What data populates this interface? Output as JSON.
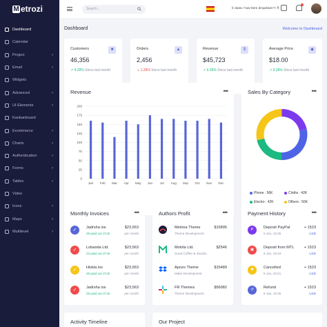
{
  "brand": {
    "logo_text": "etrozi",
    "logo_letter": "M"
  },
  "sidebar": {
    "items": [
      {
        "label": "Dashboard",
        "icon": "home-icon",
        "chevron": false,
        "active": true
      },
      {
        "label": "Calendar",
        "icon": "calendar-icon",
        "chevron": false
      },
      {
        "label": "Project",
        "icon": "folder-icon",
        "chevron": true
      },
      {
        "label": "Email",
        "icon": "mail-icon",
        "chevron": true
      },
      {
        "label": "Widgets",
        "icon": "widget-icon",
        "chevron": false
      },
      {
        "label": "Advanced",
        "icon": "layers-icon",
        "chevron": true
      },
      {
        "label": "UI Elements",
        "icon": "box-icon",
        "chevron": true
      },
      {
        "label": "Kanbanboard",
        "icon": "kanban-icon",
        "chevron": false
      },
      {
        "label": "Ecommerce",
        "icon": "cart-icon",
        "chevron": true
      },
      {
        "label": "Charts",
        "icon": "chart-icon",
        "chevron": true
      },
      {
        "label": "Authentication",
        "icon": "lock-icon",
        "chevron": true
      },
      {
        "label": "Forms",
        "icon": "form-icon",
        "chevron": true
      },
      {
        "label": "Tables",
        "icon": "table-icon",
        "chevron": true
      },
      {
        "label": "Video",
        "icon": "video-icon",
        "chevron": false
      },
      {
        "label": "Icons",
        "icon": "star-icon",
        "chevron": true
      },
      {
        "label": "Maps",
        "icon": "map-icon",
        "chevron": true
      },
      {
        "label": "Multilevel",
        "icon": "share-icon",
        "chevron": true
      }
    ]
  },
  "header": {
    "search_placeholder": "Search...",
    "code_snippet": "li class=\"nav-item dropdown\">",
    "code_suffix": "ff"
  },
  "page": {
    "title": "Dashboard",
    "welcome": "Welcome to Dashboard"
  },
  "stats": [
    {
      "label": "Customers",
      "value": "46,356",
      "change": "9.28%",
      "trend": "up",
      "note": "Since last month",
      "icon": "user-icon"
    },
    {
      "label": "Orders",
      "value": "2,456",
      "change": "1.28%",
      "trend": "down",
      "note": "Since last month",
      "icon": "cart-icon"
    },
    {
      "label": "Revenue",
      "value": "$45,723",
      "change": "9.28%",
      "trend": "up",
      "note": "Since last month",
      "icon": "dollar-icon"
    },
    {
      "label": "Average Price",
      "value": "$18.00",
      "change": "9.28%",
      "trend": "up",
      "note": "Since last month",
      "icon": "tag-icon"
    }
  ],
  "revenue_card": {
    "title": "Revenue"
  },
  "sales_card": {
    "title": "Sales By Category",
    "legend": [
      {
        "label": "Phone : 56K",
        "color": "#4f63e7"
      },
      {
        "label": "Cloths : 42K",
        "color": "#7c3aed"
      },
      {
        "label": "Electro : 42K",
        "color": "#1cb980"
      },
      {
        "label": "Others : 56K",
        "color": "#f5c518"
      }
    ]
  },
  "chart_data": [
    {
      "type": "bar",
      "title": "Revenue",
      "categories": [
        "Jan",
        "Feb",
        "Mar",
        "Apr",
        "May",
        "Jun",
        "Jul",
        "Aug",
        "Sep",
        "Oct",
        "Nov",
        "Dec"
      ],
      "values": [
        160,
        155,
        115,
        160,
        150,
        175,
        165,
        165,
        160,
        160,
        165,
        155
      ],
      "ylim": [
        0,
        200
      ],
      "yticks": [
        0,
        25,
        50,
        75,
        100,
        125,
        150,
        175,
        200
      ],
      "color": "#5866d6",
      "grid": true
    },
    {
      "type": "pie",
      "title": "Sales By Category",
      "donut": true,
      "slices": [
        {
          "label": "Cloths",
          "value": 42,
          "color": "#7c3aed"
        },
        {
          "label": "Phone",
          "value": 56,
          "color": "#4f63e7"
        },
        {
          "label": "Electro",
          "value": 42,
          "color": "#1cb980"
        },
        {
          "label": "Others",
          "value": 56,
          "color": "#f5c518"
        }
      ]
    }
  ],
  "invoices": {
    "title": "Monthly Invoices",
    "rows": [
      {
        "name": "Jadrsha ios",
        "sub": "29 paid out of 25",
        "amount": "$23,563",
        "period": "per month",
        "color": "#5866d6"
      },
      {
        "name": "Lobanda Ltd.",
        "sub": "23 paid out of 25",
        "amount": "$23,563",
        "period": "per month",
        "color": "#ef4b4b"
      },
      {
        "name": "Hiskla ios",
        "sub": "25 paid out of 25",
        "amount": "$23,563",
        "period": "per month",
        "color": "#f5c518"
      },
      {
        "name": "Jadrsha ios",
        "sub": "29 paid out of 25",
        "amount": "$23,563",
        "period": "per month",
        "color": "#ef4b4b"
      }
    ]
  },
  "authors": {
    "title": "Authors Profit",
    "rows": [
      {
        "name": "Metrioa Theme",
        "sub": "Theme Development",
        "amount": "$15895",
        "logo": "metrioa-logo"
      },
      {
        "name": "Motrila Ltd.",
        "sub": "Good Coffee & Snacks",
        "amount": "$2546",
        "logo": "motrila-logo"
      },
      {
        "name": "Apozo Theme",
        "sub": "Make Development",
        "amount": "$15489",
        "logo": "dropbox-logo"
      },
      {
        "name": "FR Themes",
        "sub": "Theme Development",
        "amount": "$56982",
        "logo": "slack-logo"
      }
    ]
  },
  "payments": {
    "title": "Payment History",
    "rows": [
      {
        "name": "Deposit PayPal",
        "date": "5 Jan, 15:35",
        "amount": "+ 1523",
        "cur": "USD",
        "color": "#7c3aed"
      },
      {
        "name": "Deposit from MTL",
        "date": "8 Jan, 19:34",
        "amount": "+ 1523",
        "cur": "USD",
        "color": "#ef4b4b"
      },
      {
        "name": "Cancelled",
        "date": "8 Jan, 22:01",
        "amount": "+ 1523",
        "cur": "USD",
        "color": "#f5c518"
      },
      {
        "name": "Refund",
        "date": "8 Jan, 15:35",
        "amount": "+ 1523",
        "cur": "USD",
        "color": "#5866d6"
      }
    ]
  },
  "bottom": {
    "left_title": "Activity Timeline",
    "right_title": "Our Project"
  }
}
